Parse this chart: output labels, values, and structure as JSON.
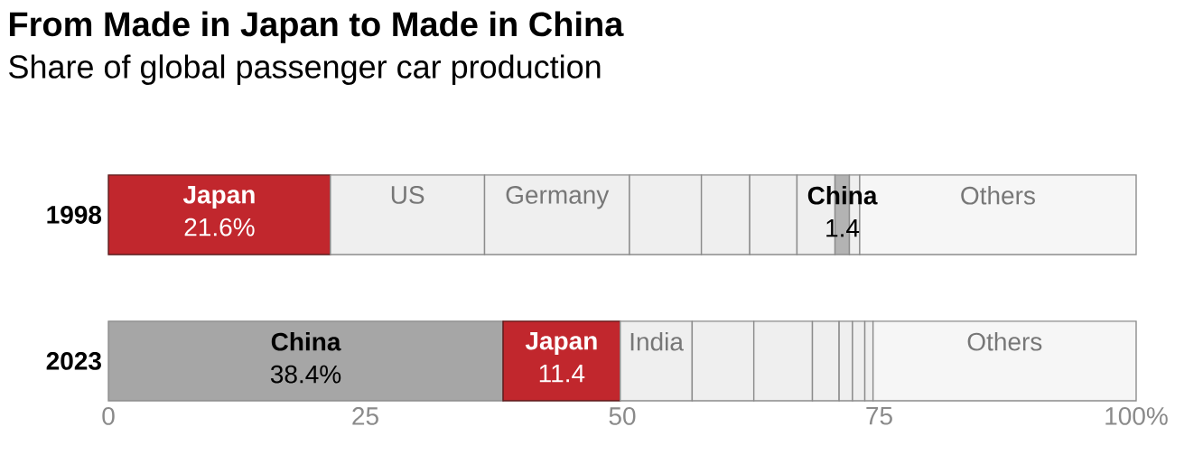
{
  "chart_data": {
    "type": "bar",
    "orientation": "horizontal",
    "stacked": true,
    "title": "From Made in Japan to Made in China",
    "subtitle": "Share of global passenger car production",
    "categories": [
      "1998",
      "2023"
    ],
    "series": [
      {
        "colors": [
          "#c1272d",
          "#a6a6a6"
        ],
        "values": [
          21.6,
          38.4
        ],
        "value_labels": [
          "**Japan** 21.6%",
          "**China** 38.4%"
        ]
      },
      {
        "colors": [
          "#efefef",
          "#c1272d"
        ],
        "values": [
          15.0,
          11.4
        ],
        "value_labels": [
          "US",
          "**Japan** 11.4"
        ]
      },
      {
        "colors": [
          "#efefef",
          "#efefef"
        ],
        "values": [
          14.1,
          7.0
        ],
        "value_labels": [
          "Germany",
          "India"
        ]
      },
      {
        "colors": [
          "#efefef",
          "#efefef"
        ],
        "values": [
          7.0,
          6.0
        ],
        "value_labels": [
          null,
          null
        ]
      },
      {
        "colors": [
          "#efefef",
          "#efefef"
        ],
        "values": [
          4.7,
          5.7
        ],
        "value_labels": [
          null,
          null
        ]
      },
      {
        "colors": [
          "#efefef",
          "#efefef"
        ],
        "values": [
          4.6,
          2.6
        ],
        "value_labels": [
          null,
          null
        ]
      },
      {
        "colors": [
          "#efefef",
          "#efefef"
        ],
        "values": [
          3.7,
          1.3
        ],
        "value_labels": [
          null,
          null
        ]
      },
      {
        "colors": [
          "#b3b3b3",
          "#efefef"
        ],
        "values": [
          1.4,
          1.2
        ],
        "value_labels": [
          "**China** 1.4",
          null
        ]
      },
      {
        "colors": [
          "#efefef",
          "#efefef"
        ],
        "values": [
          1.0,
          0.8
        ],
        "value_labels": [
          null,
          null
        ]
      },
      {
        "colors": [
          "#f6f6f6",
          "#f6f6f6"
        ],
        "values": [
          26.9,
          25.6
        ],
        "value_labels": [
          "Others",
          "Others"
        ]
      }
    ],
    "xlim": [
      0,
      100
    ],
    "xticks": [
      0,
      25,
      50,
      75,
      {
        "value": 100,
        "label": "100%"
      }
    ]
  }
}
